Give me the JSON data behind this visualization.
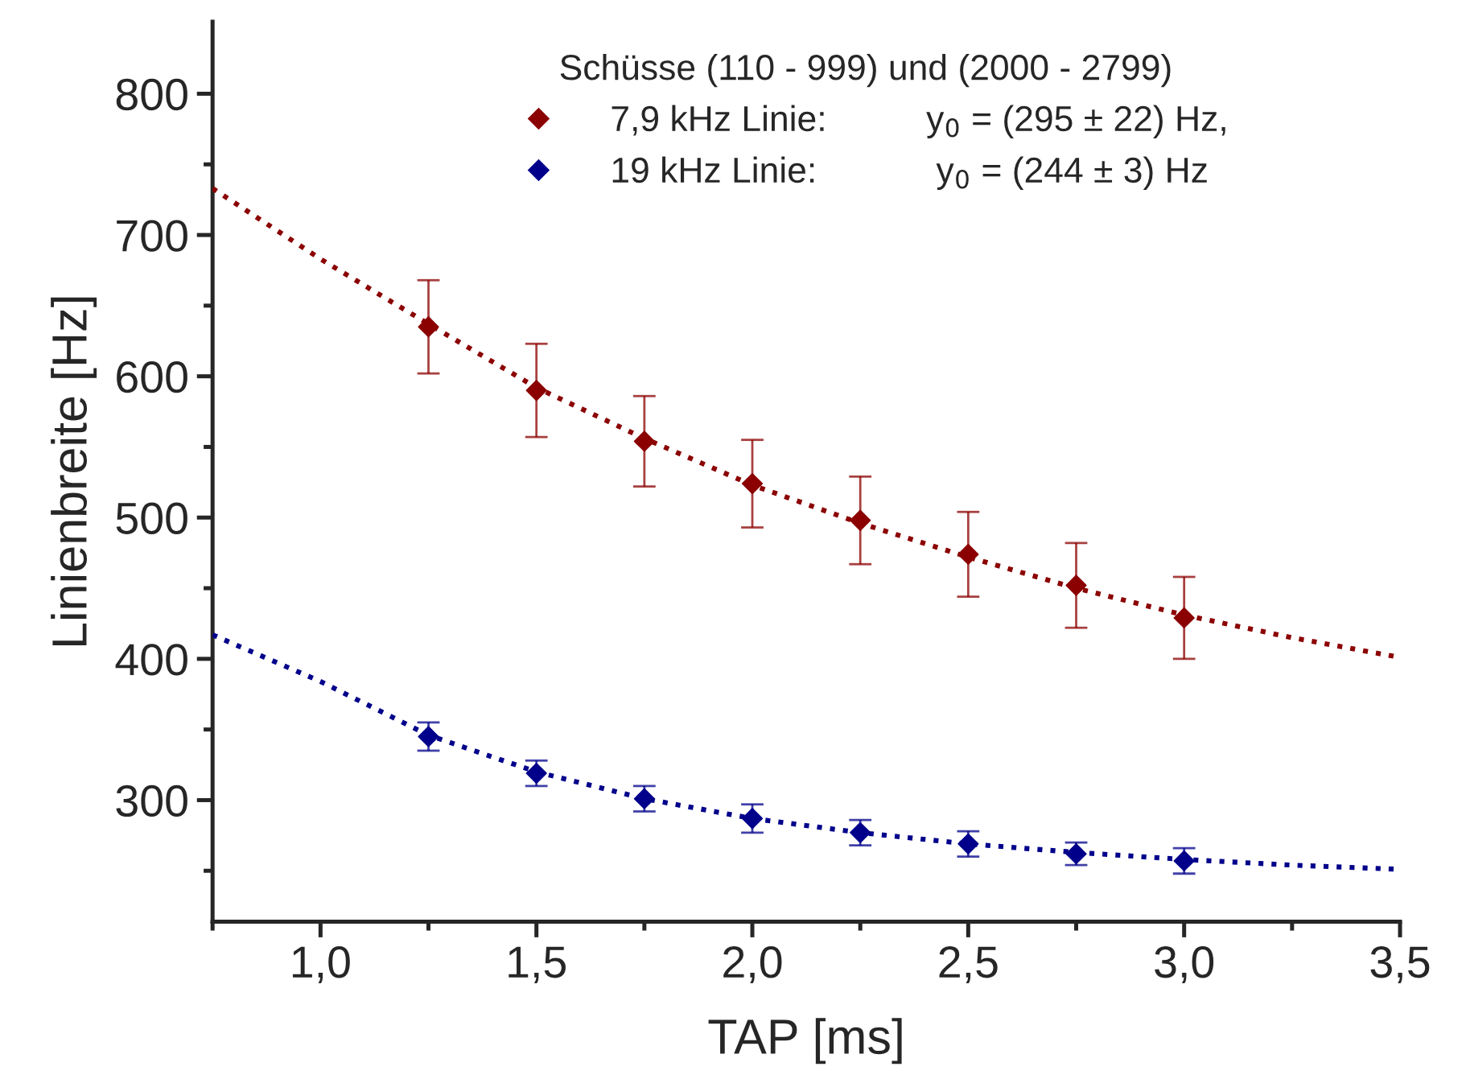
{
  "chart_data": {
    "type": "scatter",
    "xlabel": "TAP [ms]",
    "ylabel": "Linienbreite [Hz]",
    "legend_title": "Schüsse (110 - 999) und (2000 - 2799)",
    "legend": "top",
    "grid": false,
    "xlim": [
      0.75,
      3.5
    ],
    "xticks": [
      {
        "value": 1.0,
        "label": "1,0"
      },
      {
        "value": 1.5,
        "label": "1,5"
      },
      {
        "value": 2.0,
        "label": "2,0"
      },
      {
        "value": 2.5,
        "label": "2,5"
      },
      {
        "value": 3.0,
        "label": "3,0"
      },
      {
        "value": 3.5,
        "label": "3,5"
      }
    ],
    "ylim": [
      214,
      851
    ],
    "yticks": [
      300,
      400,
      500,
      600,
      700,
      800
    ],
    "series": [
      {
        "name": "7,9 kHz Linie:          y$_{0}$ = (295 ± 22) Hz,",
        "marker": "diamond",
        "color": "#8b0000",
        "x": [
          1.25,
          1.5,
          1.75,
          2.0,
          2.25,
          2.5,
          2.75,
          3.0
        ],
        "values": [
          635,
          590,
          554,
          524,
          498,
          474,
          452,
          429
        ],
        "errors": [
          33,
          33,
          32,
          31,
          31,
          30,
          30,
          29
        ]
      },
      {
        "name": "19 kHz Linie:            y$_{0}$ = (244 ± 3) Hz",
        "marker": "diamond",
        "color": "#00008b",
        "x": [
          1.25,
          1.5,
          1.75,
          2.0,
          2.25,
          2.5,
          2.75,
          3.0
        ],
        "values": [
          345,
          319,
          301,
          287,
          277,
          269,
          262,
          257
        ],
        "errors": [
          10,
          9,
          9,
          10,
          9,
          9,
          8,
          9
        ]
      },
      {
        "type": "line",
        "line_style": "dotted",
        "color": "#8b0000",
        "x": [
          0.75,
          1.0,
          1.25,
          1.5,
          1.75,
          2.0,
          2.25,
          2.5,
          2.75,
          3.0,
          3.25,
          3.5
        ],
        "values": [
          733,
          683,
          637,
          592,
          556,
          523,
          496,
          472,
          450,
          431,
          415,
          401
        ]
      },
      {
        "type": "line",
        "line_style": "dotted",
        "color": "#00008b",
        "x": [
          0.75,
          1.0,
          1.25,
          1.5,
          1.75,
          2.0,
          2.25,
          2.5,
          2.75,
          3.0,
          3.25,
          3.5
        ],
        "values": [
          417,
          384,
          346,
          320,
          301,
          287,
          277,
          269,
          263,
          258,
          254,
          251
        ]
      }
    ]
  }
}
